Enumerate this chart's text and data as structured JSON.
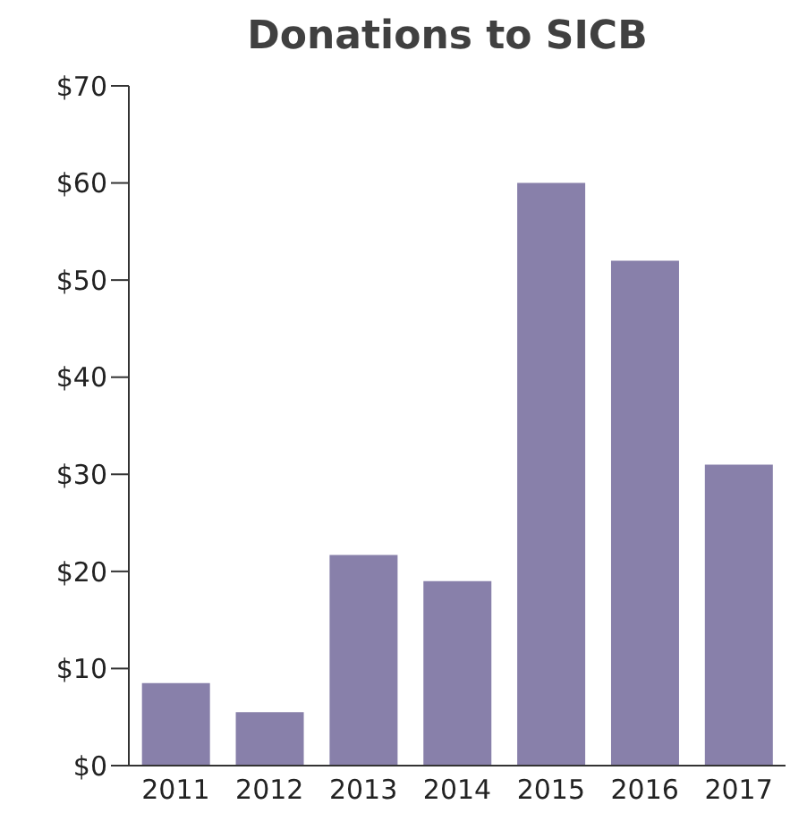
{
  "chart_data": {
    "type": "bar",
    "title": "Donations to SICB",
    "categories": [
      "2011",
      "2012",
      "2013",
      "2014",
      "2015",
      "2016",
      "2017"
    ],
    "values": [
      8.5,
      5.5,
      21.7,
      19,
      60,
      52,
      31
    ],
    "color": "#8880aa",
    "ylim": [
      0,
      70
    ],
    "yticks": [
      {
        "value": 0,
        "label": "$0"
      },
      {
        "value": 10,
        "label": "$10"
      },
      {
        "value": 20,
        "label": "$20"
      },
      {
        "value": 30,
        "label": "$30"
      },
      {
        "value": 40,
        "label": "$40"
      },
      {
        "value": 50,
        "label": "$50"
      },
      {
        "value": 60,
        "label": "$60"
      },
      {
        "value": 70,
        "label": "$70"
      }
    ],
    "grid": false
  }
}
